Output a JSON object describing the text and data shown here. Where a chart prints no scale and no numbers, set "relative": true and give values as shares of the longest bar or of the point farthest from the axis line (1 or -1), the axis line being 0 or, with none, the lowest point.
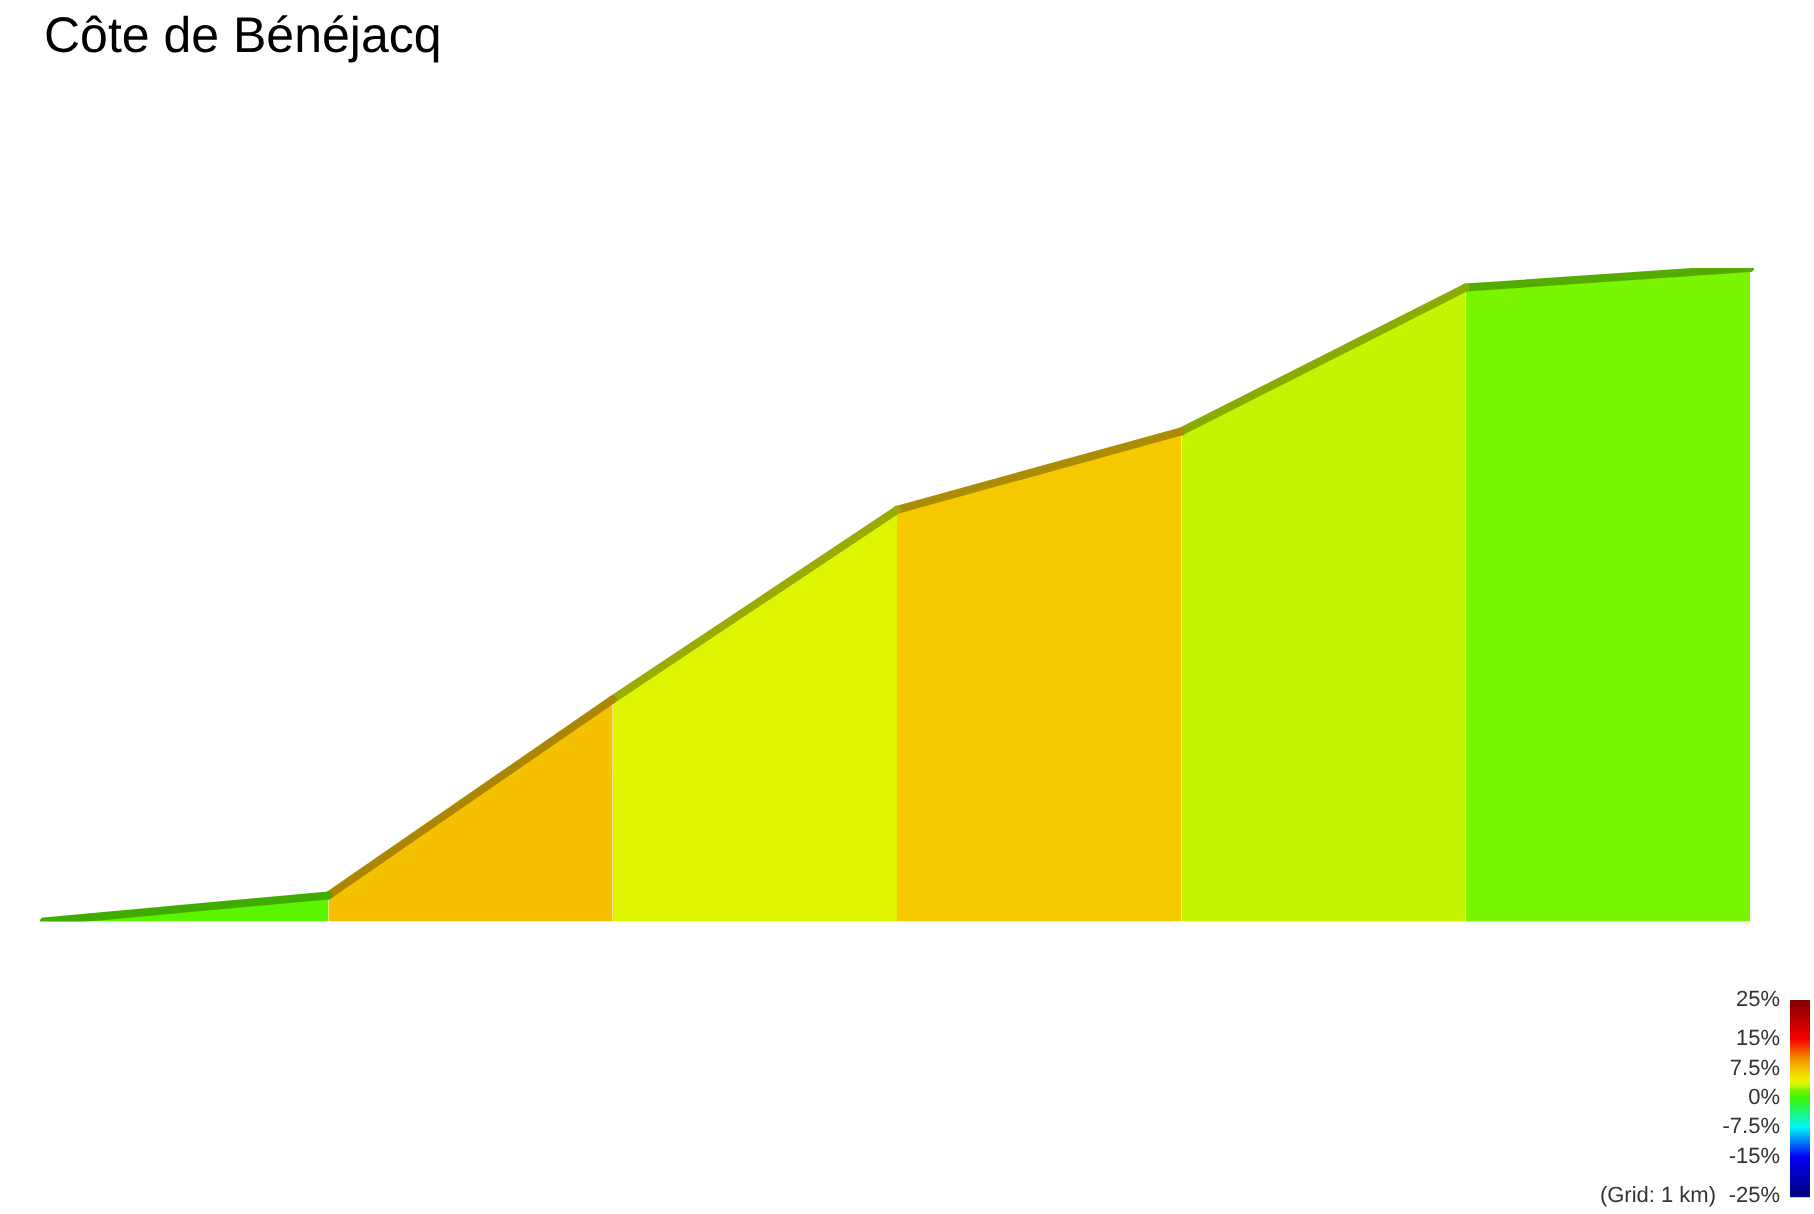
{
  "chart_data": {
    "type": "area",
    "title": "Côte de Bénéjacq",
    "categories": [
      null,
      null,
      null,
      null,
      null,
      null,
      null
    ],
    "relative": true,
    "series": [
      {
        "color": "#5bf500",
        "values": [
          0,
          0.04,
          null,
          null,
          null,
          null,
          null
        ]
      },
      {
        "color": "#f5c000",
        "values": [
          null,
          0.04,
          0.34,
          null,
          null,
          null,
          null
        ]
      },
      {
        "color": "#def500",
        "values": [
          null,
          null,
          0.34,
          0.63,
          null,
          null,
          null
        ]
      },
      {
        "color": "#f5c800",
        "values": [
          null,
          null,
          null,
          0.63,
          0.75,
          null,
          null
        ]
      },
      {
        "color": "#c4f500",
        "values": [
          null,
          null,
          null,
          null,
          0.75,
          0.97,
          null
        ]
      },
      {
        "color": "#7af500",
        "values": [
          null,
          null,
          null,
          null,
          null,
          0.97,
          1
        ]
      }
    ],
    "clim": [
      -25,
      25
    ],
    "cticks": [
      {
        "value": 25,
        "label": "25%"
      },
      {
        "value": 15,
        "label": "15%"
      },
      {
        "value": 7.5,
        "label": "7.5%"
      },
      {
        "value": 0,
        "label": "0%"
      },
      {
        "value": -7.5,
        "label": "-7.5%"
      },
      {
        "value": -15,
        "label": "-15%"
      },
      {
        "value": -25,
        "label": "-25%"
      }
    ],
    "annotations": [
      "(Grid: 1 km)"
    ]
  }
}
